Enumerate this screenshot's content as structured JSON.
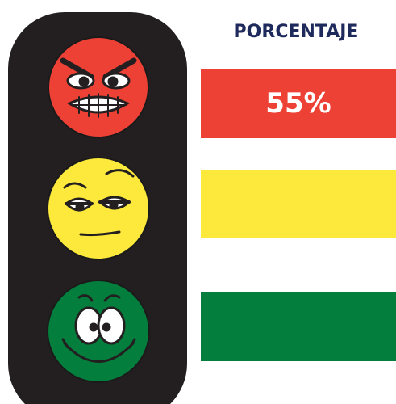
{
  "header": {
    "title": "PORCENTAJE"
  },
  "rows": [
    {
      "color": "#ee4136",
      "label": "55%"
    },
    {
      "color": "#fde93b"
    },
    {
      "color": "#037e3d"
    }
  ]
}
